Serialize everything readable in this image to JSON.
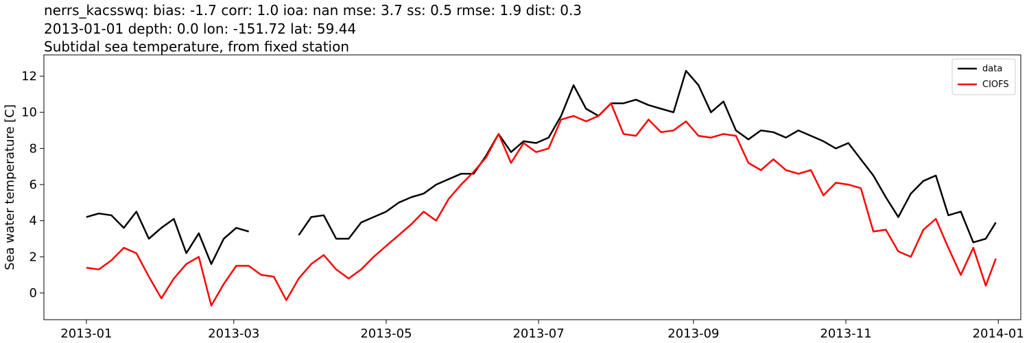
{
  "chart_data": {
    "type": "line",
    "title": [
      "nerrs_kacsswq: bias: -1.7  corr: 1.0  ioa: nan  mse: 3.7  ss: 0.5  rmse: 1.9  dist: 0.3",
      "2013-01-01 depth: 0.0 lon: -151.72 lat: 59.44",
      "Subtidal sea temperature, from fixed station"
    ],
    "y_label": "Sea water temperature [C]",
    "x": [
      "2013-01-01",
      "2013-01-06",
      "2013-01-11",
      "2013-01-16",
      "2013-01-21",
      "2013-01-26",
      "2013-01-31",
      "2013-02-05",
      "2013-02-10",
      "2013-02-15",
      "2013-02-20",
      "2013-02-25",
      "2013-03-02",
      "2013-03-07",
      "2013-03-12",
      "2013-03-17",
      "2013-03-22",
      "2013-03-27",
      "2013-04-01",
      "2013-04-06",
      "2013-04-11",
      "2013-04-16",
      "2013-04-21",
      "2013-04-26",
      "2013-05-01",
      "2013-05-06",
      "2013-05-11",
      "2013-05-16",
      "2013-05-21",
      "2013-05-26",
      "2013-05-31",
      "2013-06-05",
      "2013-06-10",
      "2013-06-15",
      "2013-06-20",
      "2013-06-25",
      "2013-06-30",
      "2013-07-05",
      "2013-07-10",
      "2013-07-15",
      "2013-07-20",
      "2013-07-25",
      "2013-07-30",
      "2013-08-04",
      "2013-08-09",
      "2013-08-14",
      "2013-08-19",
      "2013-08-24",
      "2013-08-29",
      "2013-09-03",
      "2013-09-08",
      "2013-09-13",
      "2013-09-18",
      "2013-09-23",
      "2013-09-28",
      "2013-10-03",
      "2013-10-08",
      "2013-10-13",
      "2013-10-18",
      "2013-10-23",
      "2013-10-28",
      "2013-11-02",
      "2013-11-07",
      "2013-11-12",
      "2013-11-17",
      "2013-11-22",
      "2013-11-27",
      "2013-12-02",
      "2013-12-07",
      "2013-12-12",
      "2013-12-17",
      "2013-12-22",
      "2013-12-27",
      "2013-12-31"
    ],
    "series": [
      {
        "name": "data",
        "color": "#000000",
        "values": [
          4.2,
          4.4,
          4.3,
          3.6,
          4.5,
          3.0,
          3.6,
          4.1,
          2.2,
          3.3,
          1.6,
          3.0,
          3.6,
          3.4,
          null,
          null,
          null,
          3.2,
          4.2,
          4.3,
          3.0,
          3.0,
          3.9,
          4.2,
          4.5,
          5.0,
          5.3,
          5.5,
          6.0,
          6.3,
          6.6,
          6.6,
          7.6,
          8.8,
          7.8,
          8.4,
          8.3,
          8.6,
          9.8,
          11.5,
          10.2,
          9.8,
          10.5,
          10.5,
          10.7,
          10.4,
          10.2,
          10.0,
          12.3,
          11.5,
          10.0,
          10.6,
          9.0,
          8.5,
          9.0,
          8.9,
          8.6,
          9.0,
          8.7,
          8.4,
          8.0,
          8.3,
          7.4,
          6.5,
          5.3,
          4.2,
          5.5,
          6.2,
          6.5,
          4.3,
          4.5,
          2.8,
          3.0,
          3.9
        ]
      },
      {
        "name": "CIOFS",
        "color": "#ff0000",
        "values": [
          1.4,
          1.3,
          1.8,
          2.5,
          2.2,
          0.9,
          -0.3,
          0.8,
          1.6,
          2.0,
          -0.7,
          0.5,
          1.5,
          1.5,
          1.0,
          0.9,
          -0.4,
          0.8,
          1.6,
          2.1,
          1.3,
          0.8,
          1.3,
          2.0,
          2.6,
          3.2,
          3.8,
          4.5,
          4.0,
          5.2,
          6.0,
          6.7,
          7.5,
          8.8,
          7.2,
          8.3,
          7.8,
          8.0,
          9.6,
          9.8,
          9.5,
          9.8,
          10.5,
          8.8,
          8.7,
          9.6,
          8.9,
          9.0,
          9.5,
          8.7,
          8.6,
          8.8,
          8.7,
          7.2,
          6.8,
          7.4,
          6.8,
          6.6,
          6.8,
          5.4,
          6.1,
          6.0,
          5.8,
          3.4,
          3.5,
          2.3,
          2.0,
          3.5,
          4.1,
          2.5,
          1.0,
          2.5,
          0.4,
          1.9
        ]
      }
    ],
    "xlim": [
      "2012-12-15",
      "2014-01-10"
    ],
    "xticks": [
      {
        "value": "2013-01-01",
        "label": "2013-01"
      },
      {
        "value": "2013-03-01",
        "label": "2013-03"
      },
      {
        "value": "2013-05-01",
        "label": "2013-05"
      },
      {
        "value": "2013-07-01",
        "label": "2013-07"
      },
      {
        "value": "2013-09-01",
        "label": "2013-09"
      },
      {
        "value": "2013-11-01",
        "label": "2013-11"
      },
      {
        "value": "2014-01-01",
        "label": "2014-01"
      }
    ],
    "ylim": [
      -1.48,
      13.18
    ],
    "yticks": [
      0,
      2,
      4,
      6,
      8,
      10,
      12
    ],
    "legend": "upper right"
  }
}
